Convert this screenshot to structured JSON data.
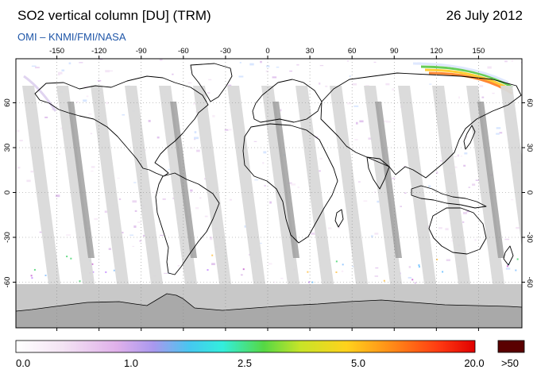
{
  "header": {
    "title": "SO2 vertical column [DU] (TRM)",
    "date": "26 July 2012",
    "subtitle": "OMI  –  KNMI/FMI/NASA"
  },
  "map": {
    "lon_ticks": [
      "-150",
      "-120",
      "-90",
      "-60",
      "-30",
      "0",
      "30",
      "60",
      "90",
      "120",
      "150"
    ],
    "lat_ticks": [
      "60",
      "30",
      "0",
      "-30",
      "-60"
    ],
    "colors": {
      "ocean": "#ffffff",
      "antarctica": "#a9a9a9",
      "polar_night": "#c8c8c8",
      "orbit_gap_light": "#d9d9d9",
      "orbit_gap_dark": "#a0a0a0",
      "coastline": "#000000",
      "graticule": "#888888"
    }
  },
  "colorbar": {
    "labels": [
      "0.0",
      "1.0",
      "2.5",
      "5.0",
      "20.0",
      ">50"
    ],
    "overflow_color": "#5a0000"
  }
}
